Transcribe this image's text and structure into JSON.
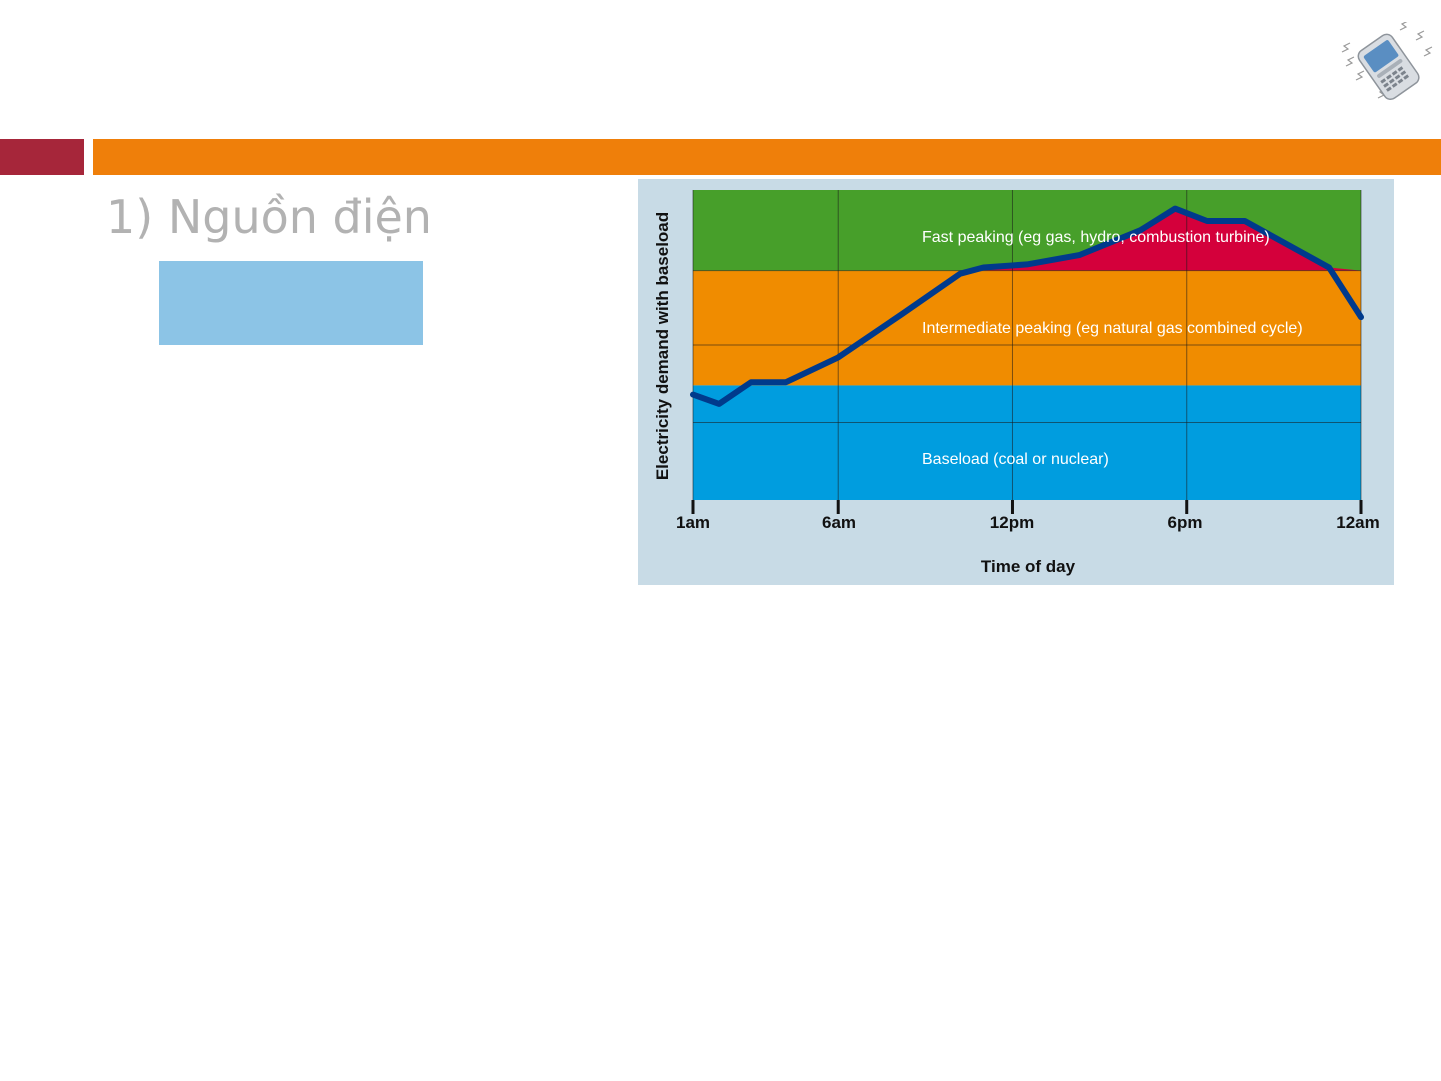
{
  "slide": {
    "heading": "1) Nguồn điện",
    "colors": {
      "accent_left": "#a6263a",
      "accent_bar": "#ef7f0a",
      "heading_text": "#b2b2b2",
      "blue_box": "#8cc4e6",
      "chart_background": "#c8dbe6"
    },
    "icon": "vibrating-phone-icon"
  },
  "chart_data": {
    "type": "area",
    "title": "",
    "xlabel": "Time of day",
    "ylabel": "Electricity demand with baseload",
    "x_ticks": [
      "1am",
      "6am",
      "12pm",
      "6pm",
      "12am"
    ],
    "x_tick_hours": [
      1,
      6,
      12,
      18,
      24
    ],
    "xlim": [
      1,
      24
    ],
    "ylim": [
      0,
      100
    ],
    "grid": true,
    "bands": [
      {
        "name": "Baseload (coal or nuclear)",
        "from": 0,
        "to": 37,
        "color": "#009ddf"
      },
      {
        "name": "Intermediate peaking (eg natural gas combined cycle)",
        "from": 37,
        "to": 74,
        "color": "#f08c00"
      },
      {
        "name": "Fast peaking (eg gas, hydro, combustion turbine)",
        "from": 74,
        "to": 100,
        "color": "#479f2a"
      }
    ],
    "fast_peaking_fill_color": "#d4003b",
    "demand_line_color": "#003a8c",
    "demand": {
      "hour": [
        1,
        1.9,
        3.0,
        4.2,
        6.0,
        8.2,
        10.2,
        11.0,
        12.5,
        14.3,
        16.4,
        17.6,
        18.7,
        20.0,
        22.9,
        24
      ],
      "value": [
        34,
        31,
        38,
        38,
        46,
        60,
        73,
        75,
        76,
        79,
        87,
        94,
        90,
        90,
        75,
        59
      ]
    }
  }
}
